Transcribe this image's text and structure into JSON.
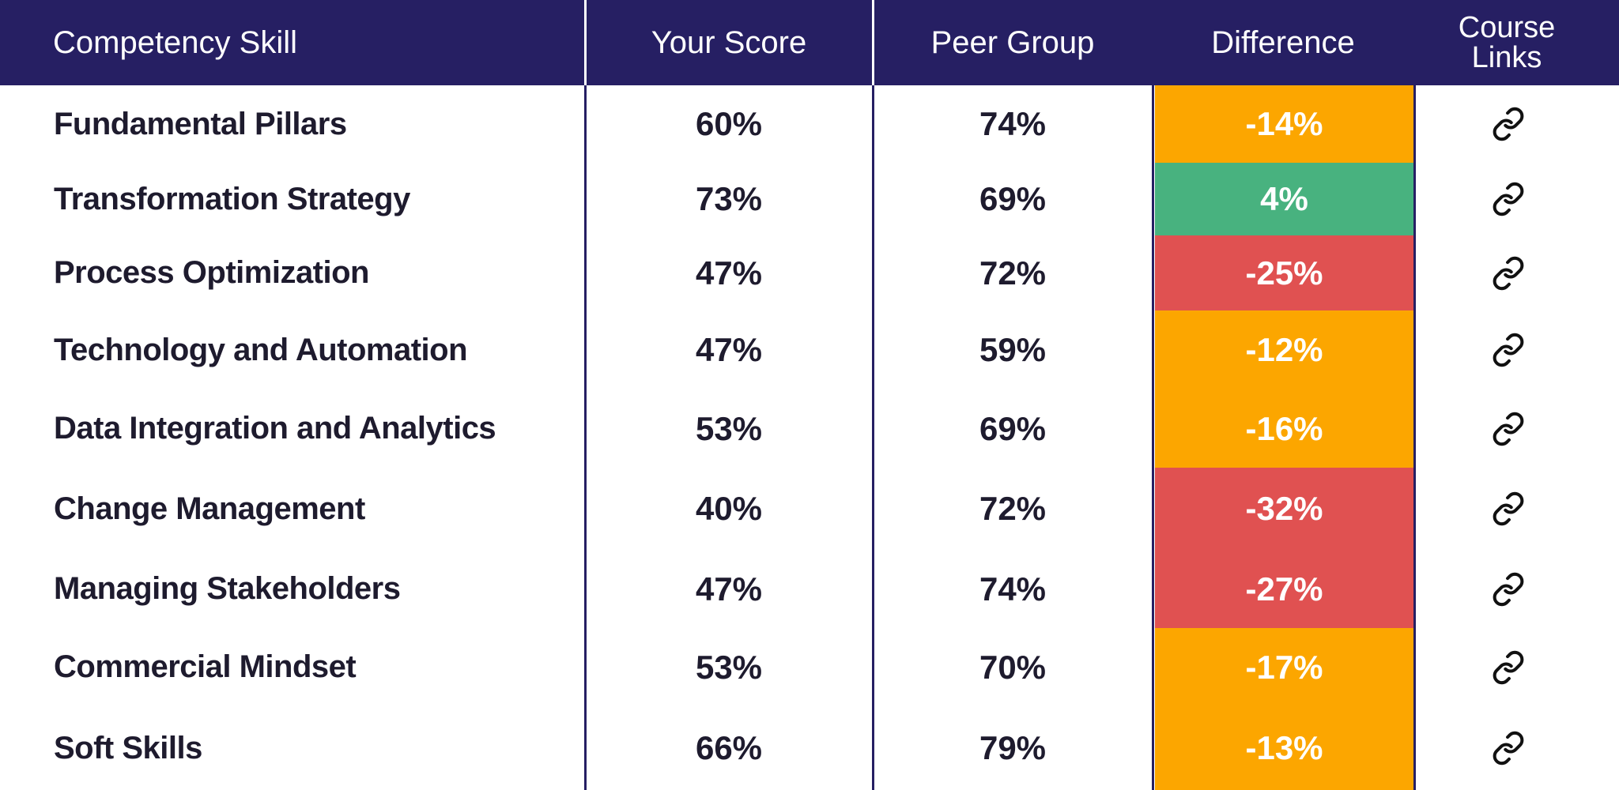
{
  "colors": {
    "header_bg": "#261f63",
    "header_text": "#ffffff",
    "body_text": "#1e1b2e",
    "status_orange": "#fca600",
    "status_green": "#48b27f",
    "status_red": "#e05151"
  },
  "header": {
    "skill": "Competency Skill",
    "score": "Your Score",
    "peer": "Peer Group",
    "difference": "Difference",
    "links_line1": "Course",
    "links_line2": "Links"
  },
  "rows": [
    {
      "skill": "Fundamental Pillars",
      "score": "60%",
      "peer": "74%",
      "difference": "-14%",
      "status": "orange",
      "link_icon": "link-icon"
    },
    {
      "skill": "Transformation Strategy",
      "score": "73%",
      "peer": "69%",
      "difference": "4%",
      "status": "green",
      "link_icon": "link-icon"
    },
    {
      "skill": "Process Optimization",
      "score": "47%",
      "peer": "72%",
      "difference": "-25%",
      "status": "red",
      "link_icon": "link-icon"
    },
    {
      "skill": "Technology and Automation",
      "score": "47%",
      "peer": "59%",
      "difference": "-12%",
      "status": "orange",
      "link_icon": "link-icon"
    },
    {
      "skill": "Data Integration and Analytics",
      "score": "53%",
      "peer": "69%",
      "difference": "-16%",
      "status": "orange",
      "link_icon": "link-icon"
    },
    {
      "skill": "Change Management",
      "score": "40%",
      "peer": "72%",
      "difference": "-32%",
      "status": "red",
      "link_icon": "link-icon"
    },
    {
      "skill": "Managing Stakeholders",
      "score": "47%",
      "peer": "74%",
      "difference": "-27%",
      "status": "red",
      "link_icon": "link-icon"
    },
    {
      "skill": "Commercial Mindset",
      "score": "53%",
      "peer": "70%",
      "difference": "-17%",
      "status": "orange",
      "link_icon": "link-icon"
    },
    {
      "skill": "Soft Skills",
      "score": "66%",
      "peer": "79%",
      "difference": "-13%",
      "status": "orange",
      "link_icon": "link-icon"
    }
  ]
}
